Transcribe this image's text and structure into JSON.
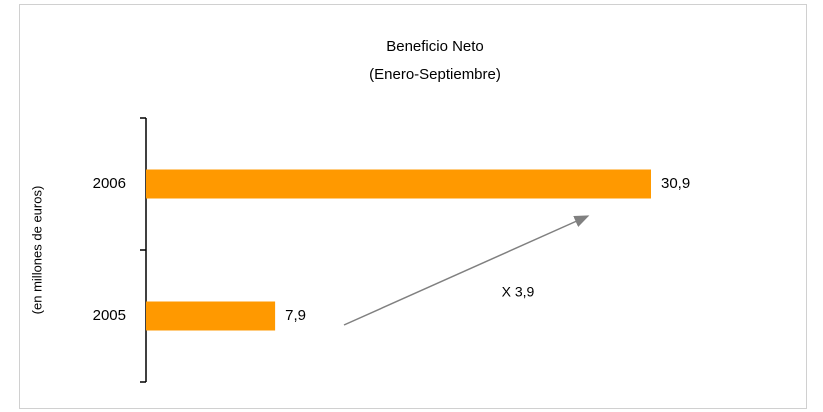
{
  "chart_data": {
    "type": "barh",
    "title": "Beneficio Neto",
    "subtitle": "(Enero-Septiembre)",
    "y_label": "(en millones de euros)",
    "categories": [
      "2005",
      "2006"
    ],
    "values": [
      7.9,
      30.9
    ],
    "value_labels": [
      "7,9",
      "30,9"
    ],
    "color": "#ff9900",
    "annotation": "X 3,9"
  }
}
